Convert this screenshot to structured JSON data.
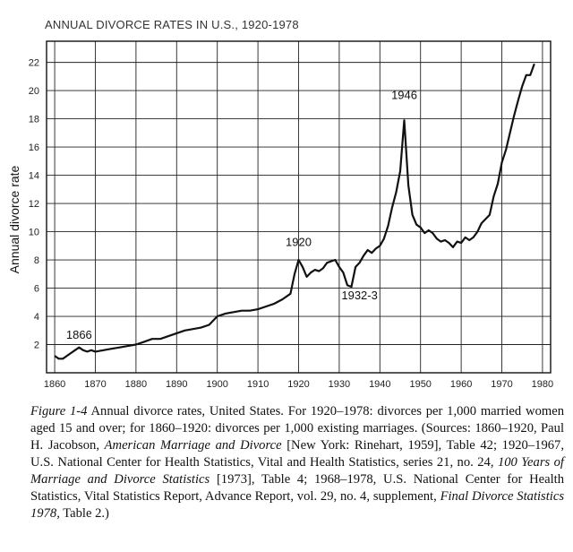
{
  "chart_data": {
    "type": "line",
    "title": "ANNUAL DIVORCE RATES IN U.S., 1920-1978",
    "xlabel": "",
    "ylabel": "Annual divorce rate",
    "xlim": [
      1858,
      1982
    ],
    "ylim": [
      0,
      23.5
    ],
    "x_ticks": [
      1860,
      1870,
      1880,
      1890,
      1900,
      1910,
      1920,
      1930,
      1940,
      1950,
      1960,
      1970,
      1980
    ],
    "y_ticks": [
      2,
      4,
      6,
      8,
      10,
      12,
      14,
      16,
      18,
      20,
      22
    ],
    "grid": true,
    "annotations": [
      {
        "text": "1866",
        "x": 1866,
        "y": 2.4
      },
      {
        "text": "1920",
        "x": 1920,
        "y": 9.0
      },
      {
        "text": "1932-3",
        "x": 1935,
        "y": 5.2
      },
      {
        "text": "1946",
        "x": 1946,
        "y": 19.4
      }
    ],
    "series": [
      {
        "name": "Annual divorce rate",
        "x": [
          1860,
          1861,
          1862,
          1863,
          1864,
          1865,
          1866,
          1867,
          1868,
          1869,
          1870,
          1872,
          1874,
          1876,
          1878,
          1880,
          1882,
          1884,
          1886,
          1888,
          1890,
          1892,
          1894,
          1896,
          1898,
          1900,
          1902,
          1904,
          1906,
          1908,
          1910,
          1912,
          1914,
          1916,
          1918,
          1919,
          1920,
          1921,
          1922,
          1923,
          1924,
          1925,
          1926,
          1927,
          1928,
          1929,
          1930,
          1931,
          1932,
          1933,
          1934,
          1935,
          1936,
          1937,
          1938,
          1939,
          1940,
          1941,
          1942,
          1943,
          1944,
          1945,
          1946,
          1947,
          1948,
          1949,
          1950,
          1951,
          1952,
          1953,
          1954,
          1955,
          1956,
          1957,
          1958,
          1959,
          1960,
          1961,
          1962,
          1963,
          1964,
          1965,
          1966,
          1967,
          1968,
          1969,
          1970,
          1971,
          1972,
          1973,
          1974,
          1975,
          1976,
          1977,
          1978
        ],
        "values": [
          1.2,
          1.0,
          1.0,
          1.2,
          1.4,
          1.6,
          1.8,
          1.6,
          1.5,
          1.6,
          1.5,
          1.6,
          1.7,
          1.8,
          1.9,
          2.0,
          2.2,
          2.4,
          2.4,
          2.6,
          2.8,
          3.0,
          3.1,
          3.2,
          3.4,
          4.0,
          4.2,
          4.3,
          4.4,
          4.4,
          4.5,
          4.7,
          4.9,
          5.2,
          5.6,
          7.0,
          8.0,
          7.5,
          6.8,
          7.1,
          7.3,
          7.2,
          7.4,
          7.8,
          7.9,
          8.0,
          7.5,
          7.1,
          6.2,
          6.1,
          7.5,
          7.8,
          8.3,
          8.7,
          8.5,
          8.8,
          9.0,
          9.5,
          10.4,
          11.7,
          12.8,
          14.3,
          17.9,
          13.3,
          11.2,
          10.5,
          10.3,
          9.9,
          10.1,
          9.9,
          9.5,
          9.3,
          9.4,
          9.2,
          8.9,
          9.3,
          9.2,
          9.6,
          9.4,
          9.6,
          10.0,
          10.6,
          10.9,
          11.2,
          12.5,
          13.4,
          14.9,
          15.8,
          17.0,
          18.2,
          19.3,
          20.3,
          21.1,
          21.1,
          21.9
        ]
      }
    ]
  },
  "caption": {
    "figure_label": "Figure 1-4",
    "text_1": " Annual divorce rates, United States. For 1920–1978: divorces per 1,000 married women aged 15 and over; for 1860–1920: divorces per 1,000 existing marriages. (Sources: 1860–1920, Paul H. Jacobson, ",
    "italic_1": "American Marriage and Divorce",
    "text_2": " [New York: Rinehart, 1959], Table 42; 1920–1967, U.S. National Center for Health Statistics, Vital and Health Statistics, series 21, no. 24, ",
    "italic_2": "100 Years of Marriage and Divorce Statistics",
    "text_3": " [1973], Table 4; 1968–1978, U.S. National Center for Health Statistics, Vital Statistics Report, Advance Report, vol. 29, no. 4, supplement, ",
    "italic_3": "Final Divorce Statistics 1978,",
    "text_4": " Table 2.)"
  }
}
